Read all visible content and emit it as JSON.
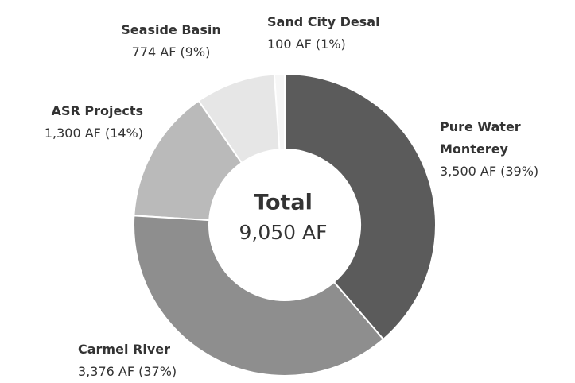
{
  "chart_data": {
    "type": "donut",
    "categories": [
      "Pure Water Monterey",
      "Carmel River",
      "ASR Projects",
      "Seaside Basin",
      "Sand City Desal"
    ],
    "values": [
      3500,
      3376,
      1300,
      774,
      100
    ],
    "value_labels": [
      "3,500 AF (39%)",
      "3,376 AF (37%)",
      "1,300 AF (14%)",
      "774 AF (9%)",
      "100 AF (1%)"
    ],
    "colors": [
      "#5b5b5b",
      "#8e8e8e",
      "#bababa",
      "#e6e6e6",
      "#f6f6f6"
    ],
    "center_title": "Total",
    "center_value": "9,050 AF"
  }
}
